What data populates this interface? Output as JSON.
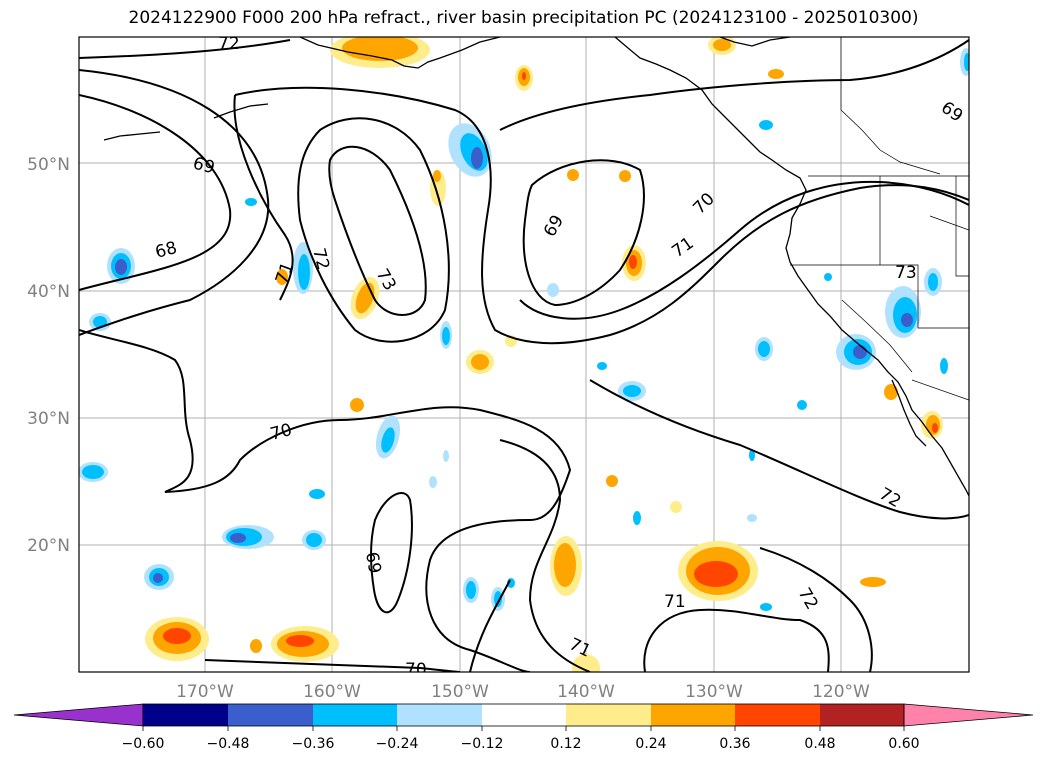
{
  "title": "2024122900 F000 200 hPa refract., river basin precipitation PC (2024123100 - 2025010300)",
  "map": {
    "lon_ticks": [
      "170°W",
      "160°W",
      "150°W",
      "140°W",
      "130°W",
      "120°W"
    ],
    "lat_ticks": [
      "50°N",
      "40°N",
      "30°N",
      "20°N"
    ],
    "contour_labels": [
      "72",
      "69",
      "68",
      "71",
      "72",
      "73",
      "69",
      "70",
      "71",
      "69",
      "73",
      "70",
      "69",
      "70",
      "71",
      "71",
      "72",
      "72"
    ]
  },
  "colorbar": {
    "tick_labels": [
      "−0.60",
      "−0.48",
      "−0.36",
      "−0.24",
      "−0.12",
      "0.12",
      "0.24",
      "0.36",
      "0.48",
      "0.60"
    ],
    "colors": [
      "#9932cc",
      "#00008b",
      "#3a5fcd",
      "#00bfff",
      "#b0e2ff",
      "#ffffff",
      "#ffec8b",
      "#ffa500",
      "#ff4500",
      "#b22222",
      "#ff82ab"
    ]
  }
}
